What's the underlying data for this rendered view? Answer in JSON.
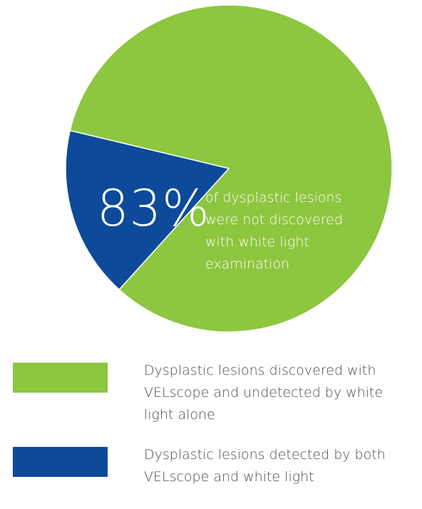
{
  "chart_data": {
    "type": "pie",
    "slices": [
      {
        "label": "Dysplastic lesions discovered with VELscope and undetected by white light alone",
        "value": 83,
        "color": "#8dc63f"
      },
      {
        "label": "Dysplastic lesions detected by both VELscope and white light",
        "value": 17,
        "color": "#0d4a9a"
      }
    ],
    "legend_position": "bottom"
  },
  "annotation": {
    "percent": "83%",
    "caption_lines": [
      "of dysplastic lesions",
      "were not discovered",
      "with white light",
      "examination"
    ]
  },
  "legend": {
    "items": [
      {
        "color": "#8dc63f",
        "lines": [
          "Dysplastic lesions discovered with",
          "VELscope and undetected by white",
          "light alone"
        ]
      },
      {
        "color": "#0d4a9a",
        "lines": [
          "Dysplastic lesions detected by both",
          "VELscope and white light"
        ]
      }
    ]
  }
}
